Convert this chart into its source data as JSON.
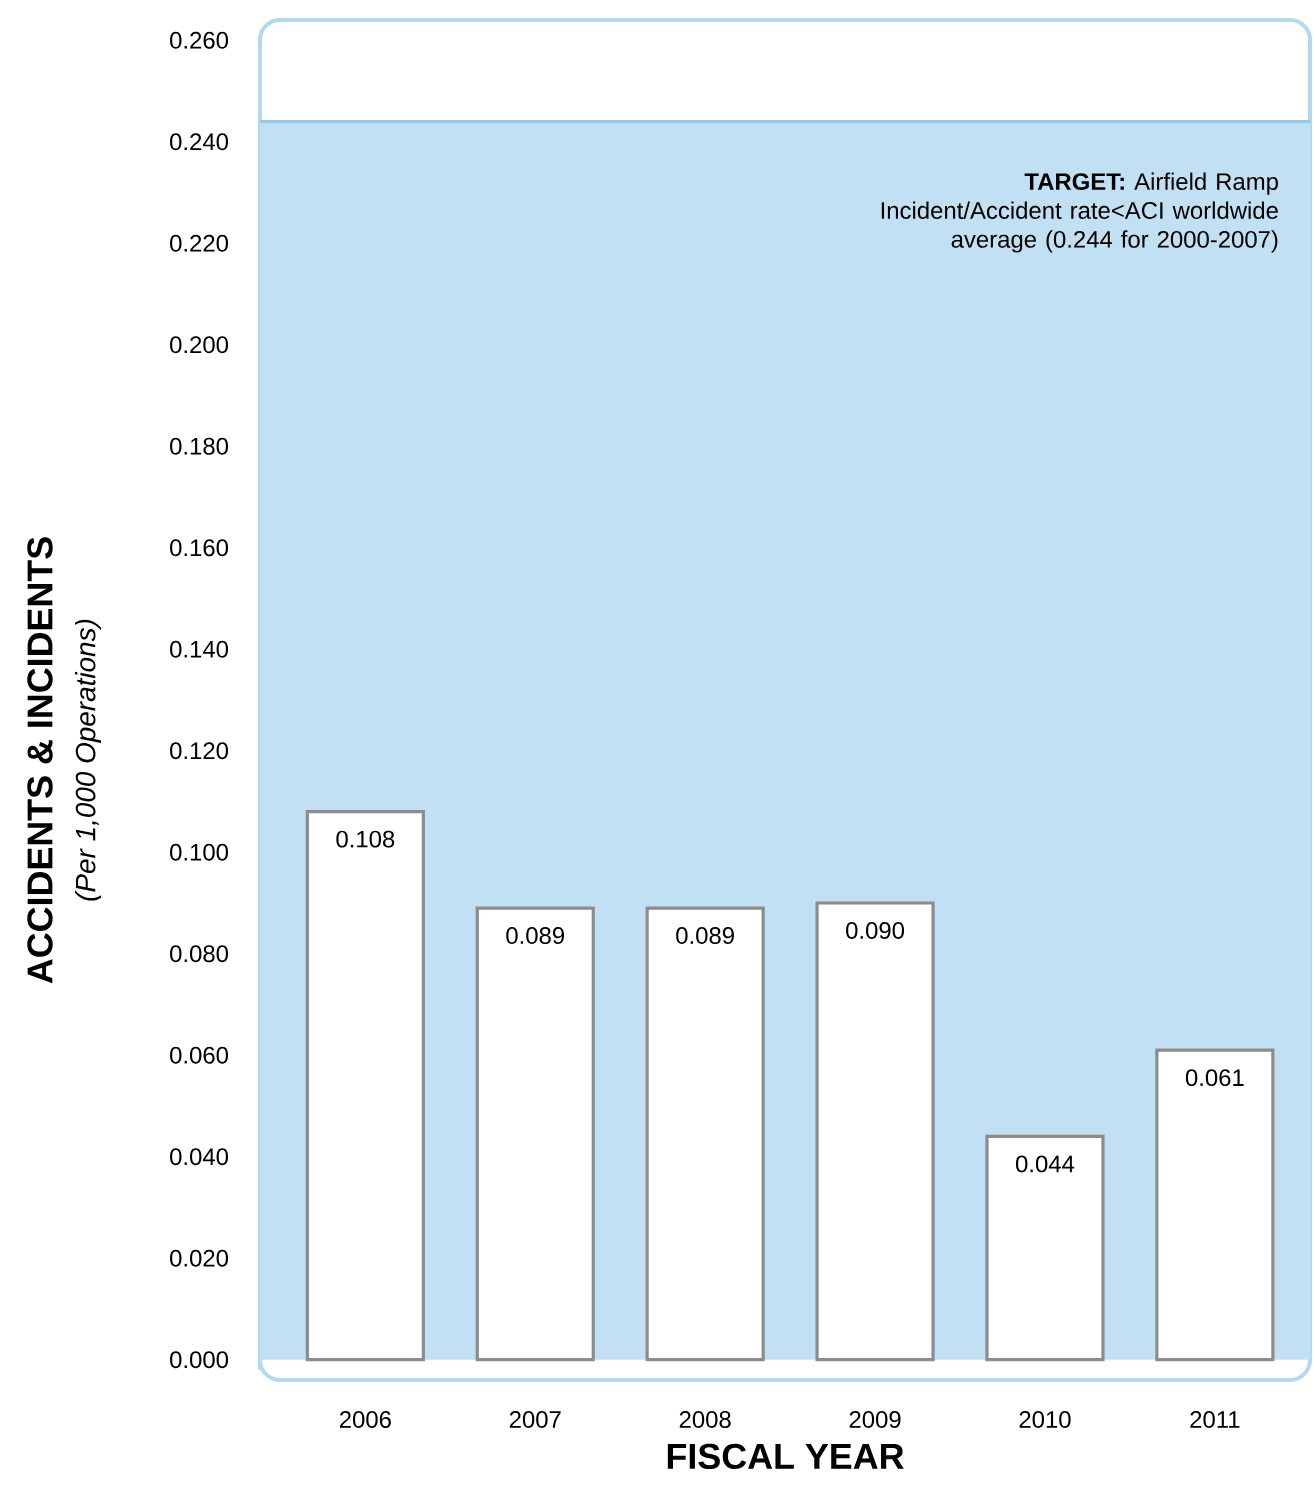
{
  "chart_data": {
    "type": "bar",
    "xlabel": "FISCAL YEAR",
    "ylabel": "ACCIDENTS & INCIDENTS",
    "annotations": [
      "(Per 1,000 Operations)"
    ],
    "categories": [
      "2006",
      "2007",
      "2008",
      "2009",
      "2010",
      "2011"
    ],
    "values": [
      0.108,
      0.089,
      0.089,
      0.09,
      0.044,
      0.061
    ],
    "value_labels": [
      "0.108",
      "0.089",
      "0.089",
      "0.090",
      "0.044",
      "0.061"
    ],
    "color": "#ffffff",
    "ylim": [
      -0.004,
      0.264
    ],
    "yticks": [
      {
        "value": 0,
        "label": "0.000"
      },
      {
        "value": 0.02,
        "label": "0.020"
      },
      {
        "value": 0.04,
        "label": "0.040"
      },
      {
        "value": 0.06,
        "label": "0.060"
      },
      {
        "value": 0.08,
        "label": "0.080"
      },
      {
        "value": 0.1,
        "label": "0.100"
      },
      {
        "value": 0.12,
        "label": "0.120"
      },
      {
        "value": 0.14,
        "label": "0.140"
      },
      {
        "value": 0.16,
        "label": "0.160"
      },
      {
        "value": 0.18,
        "label": "0.180"
      },
      {
        "value": 0.2,
        "label": "0.200"
      },
      {
        "value": 0.22,
        "label": "0.220"
      },
      {
        "value": 0.24,
        "label": "0.240"
      },
      {
        "value": 0.26,
        "label": "0.260"
      }
    ],
    "bands": [
      {
        "axis": "y",
        "from": 0,
        "to": 0.244,
        "color": "#c2e0f3"
      }
    ],
    "ref_lines": [
      {
        "axis": "y",
        "value": 0.244,
        "label": "**TARGET:** Airfield Ramp Incident/Accident rate<ACI worldwide average (0.244 for 2000-2007)",
        "color": "#93c8e8"
      }
    ],
    "grid": false
  }
}
